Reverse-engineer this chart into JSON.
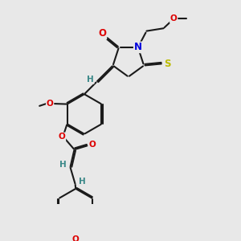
{
  "bg_color": "#e8e8e8",
  "bond_color": "#1a1a1a",
  "bond_lw": 1.5,
  "dbl_off": 0.06,
  "colors": {
    "O": "#dd0000",
    "N": "#0000dd",
    "S": "#bbbb00",
    "H": "#3a8888",
    "C": "#1a1a1a"
  },
  "fs": 7.5,
  "figw": 3.0,
  "figh": 3.0,
  "dpi": 100
}
